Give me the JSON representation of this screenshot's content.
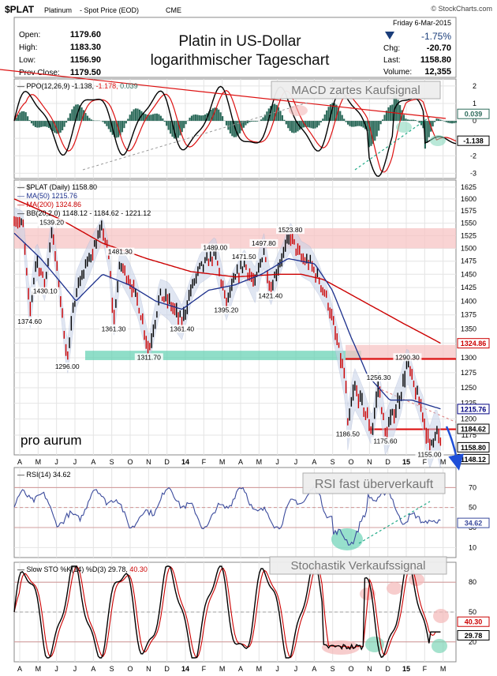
{
  "header": {
    "symbol": "$PLAT",
    "name": "Platinum",
    "subtitle": "- Spot Price (EOD)",
    "exchange": "CME",
    "watermark": "© StockCharts.com",
    "date": "Friday   6-Mar-2015"
  },
  "title": [
    "Platin in US-Dollar",
    "logarithmischer Tageschart"
  ],
  "stats_left": [
    {
      "label": "Open:",
      "value": "1179.60"
    },
    {
      "label": "High:",
      "value": "1183.30"
    },
    {
      "label": "Low:",
      "value": "1156.90"
    },
    {
      "label": "Prev Close:",
      "value": "1179.50"
    }
  ],
  "stats_right": {
    "change_pct": "-1.75%",
    "rows": [
      {
        "label": "Chg:",
        "value": "-20.70"
      },
      {
        "label": "Last:",
        "value": "1158.80"
      },
      {
        "label": "Volume:",
        "value": "12,355"
      }
    ]
  },
  "ppo": {
    "legend": [
      "PPO(12,26,9)",
      "-1.138",
      "-1.178",
      "0.039"
    ],
    "annotation": "MACD zartes Kaufsignal",
    "ticks": [
      2,
      1,
      0,
      -1,
      -2,
      -3
    ],
    "range": [
      -3.3,
      2.4
    ],
    "tag_hist": "0.039",
    "tag_line": "-1.138"
  },
  "price": {
    "legend": [
      "$PLAT (Daily) 1158.80",
      "MA(50) 1215.76",
      "MA(200) 1324.86",
      "BB(20,2.0) 1148.12 - 1184.62 - 1221.12"
    ],
    "ticks": [
      1625,
      1600,
      1575,
      1550,
      1525,
      1500,
      1475,
      1450,
      1425,
      1400,
      1375,
      1350,
      1325,
      1300,
      1275,
      1250,
      1225,
      1200,
      1175
    ],
    "range": [
      1145,
      1640
    ],
    "scale": "log",
    "price_labels": [
      {
        "text": "1539.20",
        "t": 0.085,
        "v": 1539.2
      },
      {
        "text": "1430.10",
        "t": 0.07,
        "v": 1430.1
      },
      {
        "text": "1374.60",
        "t": 0.035,
        "v": 1374.6
      },
      {
        "text": "1296.00",
        "t": 0.12,
        "v": 1296
      },
      {
        "text": "1481.30",
        "t": 0.24,
        "v": 1481.3
      },
      {
        "text": "1361.30",
        "t": 0.225,
        "v": 1361.3
      },
      {
        "text": "1311.70",
        "t": 0.305,
        "v": 1311.7
      },
      {
        "text": "1361.40",
        "t": 0.38,
        "v": 1361.4
      },
      {
        "text": "1489.00",
        "t": 0.455,
        "v": 1489
      },
      {
        "text": "1471.50",
        "t": 0.52,
        "v": 1471.5
      },
      {
        "text": "1497.80",
        "t": 0.565,
        "v": 1497.8
      },
      {
        "text": "1395.20",
        "t": 0.48,
        "v": 1395.2
      },
      {
        "text": "1421.40",
        "t": 0.58,
        "v": 1421.4
      },
      {
        "text": "1523.80",
        "t": 0.625,
        "v": 1523.8
      },
      {
        "text": "1256.30",
        "t": 0.825,
        "v": 1256.3
      },
      {
        "text": "1290.30",
        "t": 0.89,
        "v": 1290.3
      },
      {
        "text": "1186.50",
        "t": 0.755,
        "v": 1186.5
      },
      {
        "text": "1175.60",
        "t": 0.84,
        "v": 1175.6
      },
      {
        "text": "1155.00",
        "t": 0.94,
        "v": 1155
      }
    ],
    "tags": [
      {
        "text": "1324.86",
        "v": 1324.86,
        "color": "#cc0000"
      },
      {
        "text": "1215.76",
        "v": 1215.76,
        "color": "#000080"
      },
      {
        "text": "1184.62",
        "v": 1184.62,
        "color": "#000000"
      },
      {
        "text": "1158.80",
        "v": 1158.8,
        "color": "#000000"
      },
      {
        "text": "1148.12",
        "v": 1148.12,
        "color": "#000000"
      }
    ],
    "logo": "pro aurum",
    "x_labels": [
      "A",
      "M",
      "J",
      "J",
      "A",
      "S",
      "O",
      "N",
      "D",
      "14",
      "F",
      "M",
      "A",
      "M",
      "J",
      "J",
      "A",
      "S",
      "O",
      "N",
      "D",
      "15",
      "F",
      "M"
    ]
  },
  "rsi": {
    "legend": [
      "RSI(14)",
      "34.62"
    ],
    "annotation": "RSI fast überverkauft",
    "ticks": [
      70,
      50,
      30,
      10
    ],
    "range": [
      0,
      90
    ],
    "tag": "34.62"
  },
  "sto": {
    "legend": [
      "Slow STO %K(14) %D(3)",
      "29.78",
      "40.30"
    ],
    "annotation": "Stochastik Verkaufssignal",
    "ticks": [
      80,
      50,
      20
    ],
    "range": [
      0,
      100
    ],
    "tags": [
      "40.30",
      "29.78"
    ]
  },
  "chart_data": {
    "type": "line",
    "scale": "log",
    "series": [
      {
        "name": "$PLAT (Daily)",
        "last": 1158.8
      },
      {
        "name": "MA(50)",
        "last": 1215.76
      },
      {
        "name": "MA(200)",
        "last": 1324.86
      }
    ],
    "price_path": [
      [
        0.0,
        1560
      ],
      [
        0.02,
        1545
      ],
      [
        0.035,
        1375
      ],
      [
        0.05,
        1480
      ],
      [
        0.07,
        1430
      ],
      [
        0.085,
        1535
      ],
      [
        0.1,
        1440
      ],
      [
        0.12,
        1296
      ],
      [
        0.14,
        1420
      ],
      [
        0.16,
        1460
      ],
      [
        0.18,
        1500
      ],
      [
        0.2,
        1540
      ],
      [
        0.215,
        1480
      ],
      [
        0.225,
        1361
      ],
      [
        0.24,
        1470
      ],
      [
        0.26,
        1440
      ],
      [
        0.28,
        1400
      ],
      [
        0.305,
        1312
      ],
      [
        0.33,
        1410
      ],
      [
        0.35,
        1400
      ],
      [
        0.38,
        1361
      ],
      [
        0.4,
        1420
      ],
      [
        0.42,
        1460
      ],
      [
        0.455,
        1489
      ],
      [
        0.48,
        1395
      ],
      [
        0.5,
        1440
      ],
      [
        0.52,
        1471
      ],
      [
        0.545,
        1430
      ],
      [
        0.565,
        1497
      ],
      [
        0.58,
        1421
      ],
      [
        0.6,
        1470
      ],
      [
        0.625,
        1523
      ],
      [
        0.65,
        1480
      ],
      [
        0.67,
        1470
      ],
      [
        0.69,
        1440
      ],
      [
        0.71,
        1400
      ],
      [
        0.73,
        1330
      ],
      [
        0.75,
        1260
      ],
      [
        0.755,
        1186
      ],
      [
        0.77,
        1250
      ],
      [
        0.79,
        1220
      ],
      [
        0.81,
        1180
      ],
      [
        0.825,
        1256
      ],
      [
        0.84,
        1176
      ],
      [
        0.86,
        1210
      ],
      [
        0.875,
        1240
      ],
      [
        0.89,
        1290
      ],
      [
        0.91,
        1240
      ],
      [
        0.925,
        1210
      ],
      [
        0.94,
        1155
      ],
      [
        0.955,
        1185
      ],
      [
        0.965,
        1159
      ]
    ],
    "ma50_path": [
      [
        0.0,
        1530
      ],
      [
        0.06,
        1480
      ],
      [
        0.1,
        1440
      ],
      [
        0.14,
        1400
      ],
      [
        0.2,
        1450
      ],
      [
        0.26,
        1430
      ],
      [
        0.32,
        1400
      ],
      [
        0.38,
        1385
      ],
      [
        0.44,
        1420
      ],
      [
        0.5,
        1430
      ],
      [
        0.56,
        1450
      ],
      [
        0.62,
        1480
      ],
      [
        0.68,
        1470
      ],
      [
        0.72,
        1420
      ],
      [
        0.76,
        1340
      ],
      [
        0.8,
        1270
      ],
      [
        0.85,
        1230
      ],
      [
        0.9,
        1230
      ],
      [
        0.965,
        1216
      ]
    ],
    "ma200_path": [
      [
        0.0,
        1600
      ],
      [
        0.1,
        1560
      ],
      [
        0.2,
        1510
      ],
      [
        0.3,
        1480
      ],
      [
        0.4,
        1455
      ],
      [
        0.5,
        1445
      ],
      [
        0.6,
        1450
      ],
      [
        0.65,
        1450
      ],
      [
        0.7,
        1440
      ],
      [
        0.8,
        1395
      ],
      [
        0.88,
        1360
      ],
      [
        0.965,
        1325
      ]
    ]
  }
}
